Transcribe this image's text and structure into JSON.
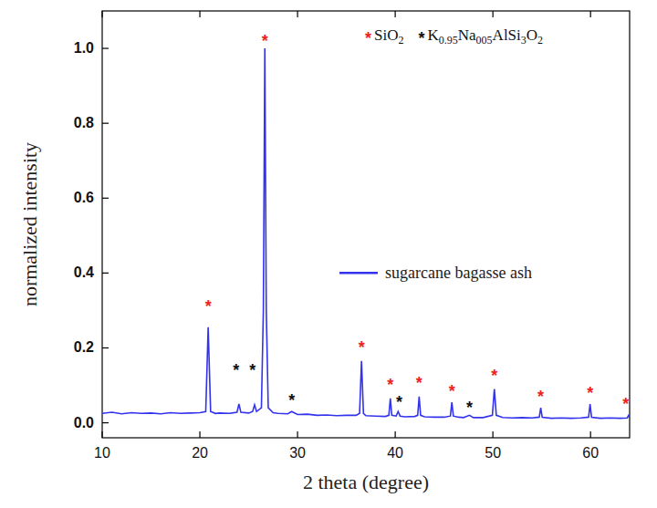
{
  "chart_data": {
    "type": "line",
    "x_label": "2 theta (degree)",
    "y_label": "normalized intensity",
    "xlim": [
      10,
      64
    ],
    "ylim": [
      -0.04,
      1.1
    ],
    "xticks": [
      10,
      20,
      30,
      40,
      50,
      60
    ],
    "yticks": [
      {
        "value": 0,
        "label": "0.0"
      },
      {
        "value": 0.2,
        "label": "0.2"
      },
      {
        "value": 0.4,
        "label": "0.4"
      },
      {
        "value": 0.6,
        "label": "0.6"
      },
      {
        "value": 0.8,
        "label": "0.8"
      },
      {
        "value": 1.0,
        "label": "1.0"
      }
    ],
    "grid": false,
    "legend": "center right",
    "x": [
      10,
      11,
      12,
      13,
      14,
      15,
      16,
      17,
      18,
      19,
      20,
      20.6,
      20.85,
      21.1,
      21.6,
      22,
      23,
      23.8,
      24.0,
      24.2,
      25,
      25.4,
      25.6,
      25.8,
      26.3,
      26.5,
      26.65,
      26.8,
      27.0,
      27.5,
      28,
      29,
      29.4,
      30,
      31,
      32,
      33,
      34,
      35,
      36,
      36.35,
      36.55,
      36.75,
      37,
      38,
      39,
      39.35,
      39.5,
      39.65,
      40.1,
      40.3,
      40.5,
      41,
      42,
      42.3,
      42.45,
      42.6,
      43,
      44,
      45,
      45.65,
      45.8,
      45.95,
      46.5,
      47,
      47.6,
      48,
      49,
      49.95,
      50.15,
      50.35,
      51,
      52,
      53,
      54,
      54.75,
      54.9,
      55.05,
      56,
      57,
      58,
      59,
      59.8,
      59.95,
      60.1,
      61,
      62,
      63,
      63.75,
      63.9,
      64
    ],
    "series": [
      {
        "name": "sugarcane bagasse ash",
        "color": "#3333ee",
        "line_style": "solid",
        "values": [
          0.025,
          0.028,
          0.024,
          0.027,
          0.025,
          0.026,
          0.024,
          0.027,
          0.025,
          0.026,
          0.027,
          0.03,
          0.255,
          0.03,
          0.025,
          0.026,
          0.025,
          0.028,
          0.05,
          0.028,
          0.026,
          0.03,
          0.048,
          0.03,
          0.04,
          0.3,
          1.0,
          0.3,
          0.04,
          0.027,
          0.025,
          0.024,
          0.03,
          0.022,
          0.023,
          0.02,
          0.021,
          0.019,
          0.02,
          0.02,
          0.025,
          0.165,
          0.025,
          0.019,
          0.018,
          0.017,
          0.02,
          0.065,
          0.02,
          0.018,
          0.03,
          0.018,
          0.016,
          0.017,
          0.02,
          0.07,
          0.02,
          0.016,
          0.015,
          0.015,
          0.018,
          0.055,
          0.018,
          0.015,
          0.014,
          0.02,
          0.014,
          0.014,
          0.02,
          0.09,
          0.02,
          0.014,
          0.013,
          0.014,
          0.013,
          0.015,
          0.04,
          0.015,
          0.012,
          0.013,
          0.012,
          0.013,
          0.015,
          0.05,
          0.015,
          0.012,
          0.013,
          0.012,
          0.013,
          0.02,
          0.013
        ]
      }
    ],
    "phases": [
      {
        "name": "SiO2",
        "symbol": "*",
        "color": "#ee2222",
        "peaks": [
          {
            "x": 20.85,
            "y": 0.32
          },
          {
            "x": 26.65,
            "y": 1.03
          },
          {
            "x": 36.55,
            "y": 0.21
          },
          {
            "x": 39.5,
            "y": 0.11
          },
          {
            "x": 42.45,
            "y": 0.115
          },
          {
            "x": 45.8,
            "y": 0.095
          },
          {
            "x": 50.15,
            "y": 0.135
          },
          {
            "x": 54.9,
            "y": 0.08
          },
          {
            "x": 59.95,
            "y": 0.09
          },
          {
            "x": 63.6,
            "y": 0.06
          }
        ]
      },
      {
        "name": "K0.95Na005AlSi3O2",
        "symbol": "*",
        "color": "#111111",
        "peaks": [
          {
            "x": 23.7,
            "y": 0.15
          },
          {
            "x": 25.4,
            "y": 0.15
          },
          {
            "x": 29.4,
            "y": 0.07
          },
          {
            "x": 40.4,
            "y": 0.065
          },
          {
            "x": 47.6,
            "y": 0.05
          }
        ]
      }
    ]
  }
}
